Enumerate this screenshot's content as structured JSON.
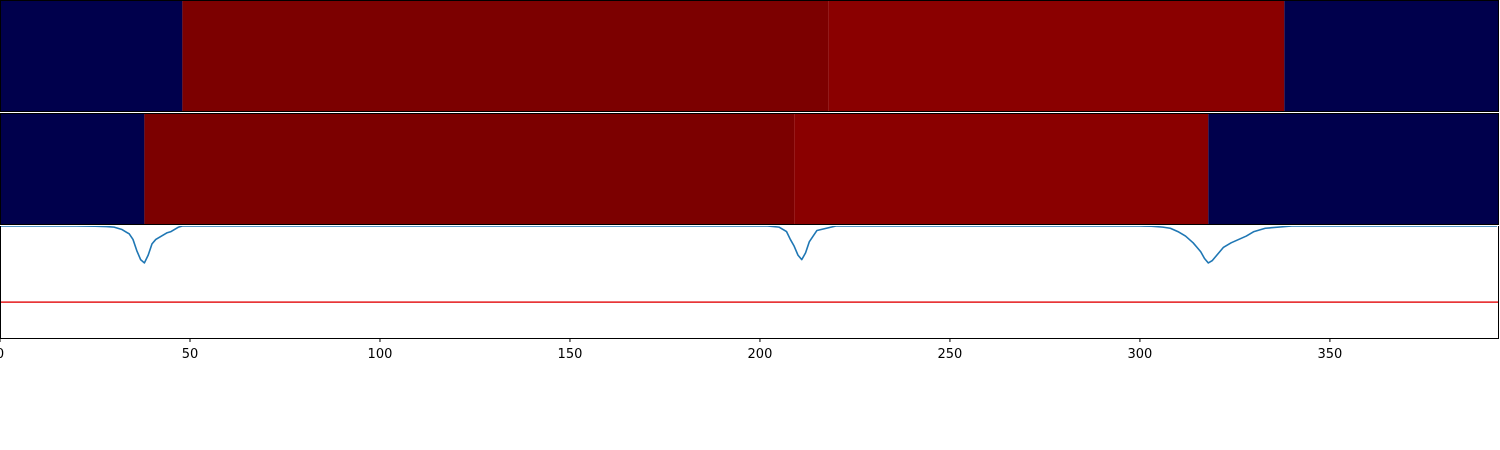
{
  "chart_data": [
    {
      "type": "heatmap",
      "xlim": [
        0,
        394.5
      ],
      "colors": {
        "low": "#00004c",
        "mid": "#7c0000",
        "high": "#8a0000"
      },
      "segments": [
        {
          "x0": 0,
          "x1": 48,
          "level": "low"
        },
        {
          "x0": 48,
          "x1": 218,
          "level": "mid"
        },
        {
          "x0": 218,
          "x1": 338,
          "level": "high"
        },
        {
          "x0": 338,
          "x1": 394.5,
          "level": "low"
        }
      ]
    },
    {
      "type": "heatmap",
      "xlim": [
        0,
        394.5
      ],
      "colors": {
        "low": "#00004c",
        "mid": "#7c0000",
        "high": "#8a0000"
      },
      "segments": [
        {
          "x0": 0,
          "x1": 38,
          "level": "low"
        },
        {
          "x0": 38,
          "x1": 209,
          "level": "mid"
        },
        {
          "x0": 209,
          "x1": 318,
          "level": "high"
        },
        {
          "x0": 318,
          "x1": 394.5,
          "level": "low"
        }
      ]
    },
    {
      "type": "line",
      "xlim": [
        0,
        394.5
      ],
      "ylim": [
        0,
        1
      ],
      "grid": false,
      "xticks": [
        0,
        50,
        100,
        150,
        200,
        250,
        300,
        350
      ],
      "xtick_labels": [
        "0",
        "50",
        "100",
        "150",
        "200",
        "250",
        "300",
        "350"
      ],
      "threshold": {
        "y": 0.32,
        "color": "#e41a1c"
      },
      "series": [
        {
          "color": "#1f77b4",
          "x": [
            0,
            20,
            25,
            28,
            30,
            32,
            34,
            35,
            36,
            37,
            38,
            39,
            40,
            41,
            43,
            44,
            45,
            46,
            47,
            48,
            50,
            55,
            60,
            190,
            198,
            202,
            205,
            207,
            208,
            209,
            210,
            211,
            212,
            213,
            215,
            220,
            225,
            295,
            300,
            303,
            306,
            308,
            310,
            312,
            314,
            315,
            316,
            317,
            318,
            319,
            320,
            321,
            322,
            324,
            326,
            328,
            330,
            333,
            340,
            394
          ],
          "y": [
            1,
            1,
            0.998,
            0.995,
            0.99,
            0.97,
            0.93,
            0.88,
            0.78,
            0.7,
            0.67,
            0.74,
            0.84,
            0.88,
            0.92,
            0.94,
            0.95,
            0.97,
            0.99,
            1,
            1,
            1,
            1,
            1,
            1,
            1,
            0.99,
            0.95,
            0.88,
            0.82,
            0.74,
            0.7,
            0.76,
            0.86,
            0.96,
            1,
            1,
            1,
            1,
            0.998,
            0.99,
            0.98,
            0.95,
            0.91,
            0.85,
            0.81,
            0.77,
            0.71,
            0.67,
            0.69,
            0.73,
            0.77,
            0.81,
            0.85,
            0.88,
            0.91,
            0.95,
            0.98,
            1,
            1
          ]
        }
      ]
    }
  ]
}
